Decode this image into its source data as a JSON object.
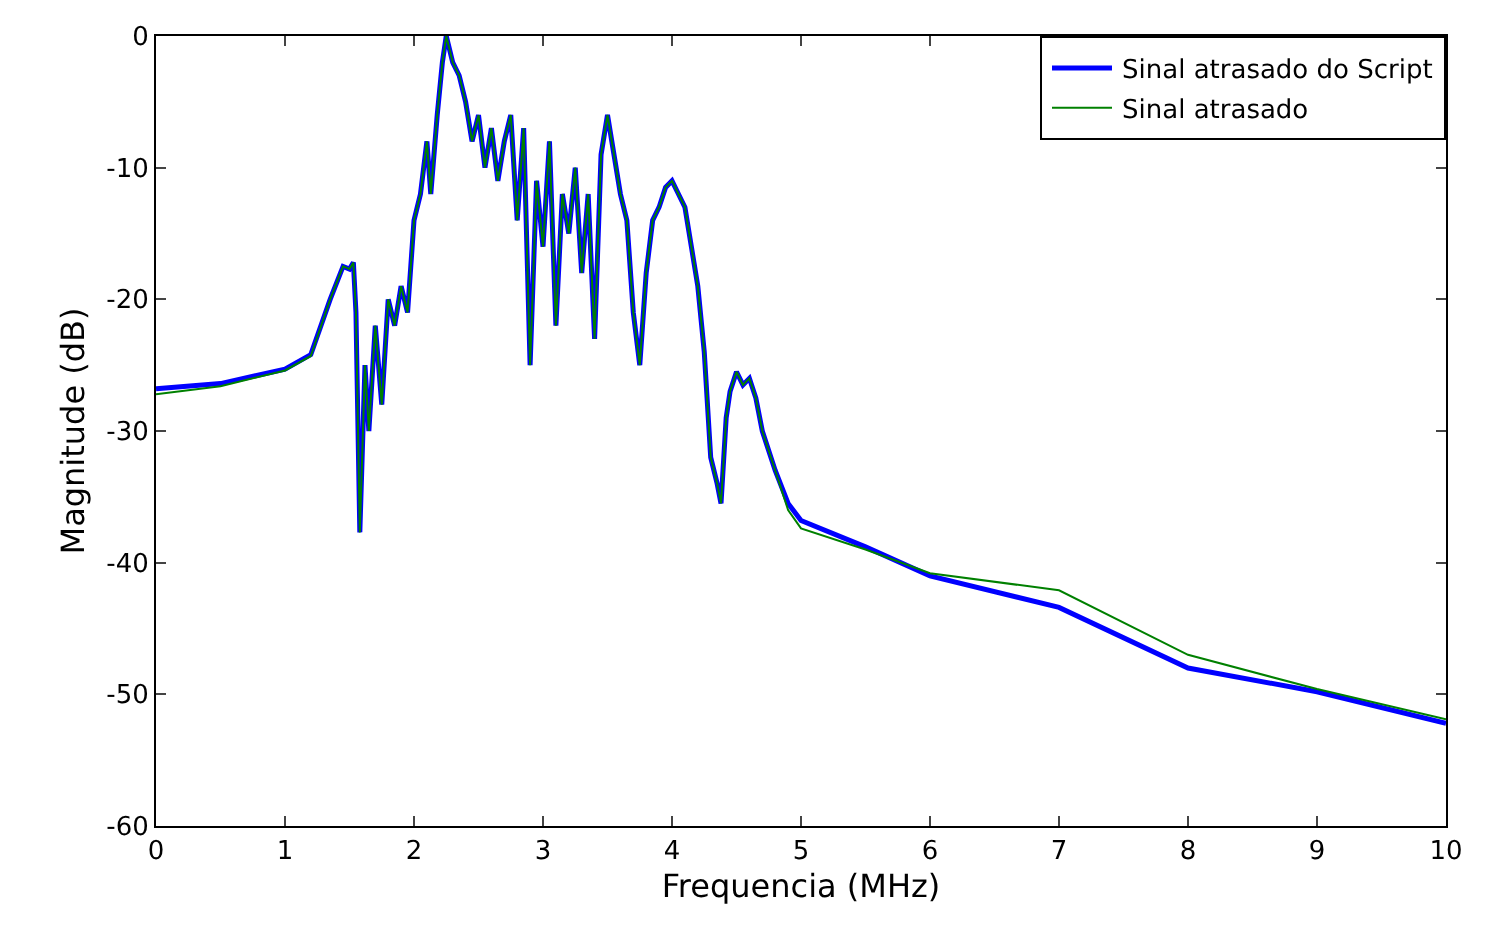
{
  "chart_data": {
    "type": "line",
    "xlabel": "Frequencia (MHz)",
    "ylabel": "Magnitude (dB)",
    "xlim": [
      0,
      10
    ],
    "xticks": [
      0,
      1,
      2,
      3,
      4,
      5,
      6,
      7,
      8,
      9,
      10
    ],
    "ylim": [
      -60,
      0
    ],
    "yticks": [
      -60,
      -50,
      -40,
      -30,
      -20,
      -10,
      0
    ],
    "grid": false,
    "legend": "top right",
    "marker": "none",
    "line_style": "solid",
    "series": [
      {
        "name": "Sinal atrasado do Script",
        "color": "#0000ff",
        "x": [
          0,
          0.5,
          1.0,
          1.2,
          1.35,
          1.45,
          1.5,
          1.53,
          1.55,
          1.58,
          1.62,
          1.65,
          1.7,
          1.75,
          1.8,
          1.85,
          1.9,
          1.95,
          2.0,
          2.05,
          2.1,
          2.13,
          2.18,
          2.22,
          2.25,
          2.3,
          2.35,
          2.4,
          2.45,
          2.5,
          2.55,
          2.6,
          2.65,
          2.7,
          2.75,
          2.8,
          2.85,
          2.9,
          2.95,
          3.0,
          3.05,
          3.1,
          3.15,
          3.2,
          3.25,
          3.3,
          3.35,
          3.4,
          3.45,
          3.5,
          3.55,
          3.6,
          3.65,
          3.7,
          3.75,
          3.8,
          3.85,
          3.9,
          3.95,
          4.0,
          4.05,
          4.1,
          4.15,
          4.2,
          4.25,
          4.3,
          4.35,
          4.38,
          4.42,
          4.45,
          4.5,
          4.55,
          4.6,
          4.65,
          4.7,
          4.8,
          4.9,
          5.0,
          5.5,
          6,
          7,
          8,
          9,
          10
        ],
        "values": [
          -26.8,
          -26.4,
          -25.3,
          -24.2,
          -20,
          -17.5,
          -17.7,
          -17.2,
          -21,
          -37.7,
          -25,
          -30,
          -22,
          -28,
          -20,
          -22,
          -19,
          -21,
          -14,
          -12,
          -8,
          -12,
          -6,
          -2,
          0,
          -2,
          -3,
          -5,
          -8,
          -6,
          -10,
          -7,
          -11,
          -8,
          -6,
          -14,
          -7,
          -25,
          -11,
          -16,
          -8,
          -22,
          -12,
          -15,
          -10,
          -18,
          -12,
          -23,
          -9,
          -6,
          -9,
          -12,
          -14,
          -21,
          -25,
          -18,
          -14,
          -13,
          -11.5,
          -11,
          -12,
          -13,
          -16,
          -19,
          -24,
          -32,
          -34,
          -35.5,
          -29,
          -27,
          -25.5,
          -26.5,
          -26,
          -27.5,
          -30,
          -33,
          -35.5,
          -36.8,
          -38.8,
          -41,
          -43.4,
          -48,
          -49.8,
          -52.2
        ]
      },
      {
        "name": "Sinal atrasado",
        "color": "#008000",
        "x": [
          0,
          0.5,
          1.0,
          1.2,
          1.35,
          1.45,
          1.5,
          1.53,
          1.55,
          1.58,
          1.62,
          1.65,
          1.7,
          1.75,
          1.8,
          1.85,
          1.9,
          1.95,
          2.0,
          2.05,
          2.1,
          2.13,
          2.18,
          2.22,
          2.25,
          2.3,
          2.35,
          2.4,
          2.45,
          2.5,
          2.55,
          2.6,
          2.65,
          2.7,
          2.75,
          2.8,
          2.85,
          2.9,
          2.95,
          3.0,
          3.05,
          3.1,
          3.15,
          3.2,
          3.25,
          3.3,
          3.35,
          3.4,
          3.45,
          3.5,
          3.55,
          3.6,
          3.65,
          3.7,
          3.75,
          3.8,
          3.85,
          3.9,
          3.95,
          4.0,
          4.05,
          4.1,
          4.15,
          4.2,
          4.25,
          4.3,
          4.35,
          4.38,
          4.42,
          4.45,
          4.5,
          4.55,
          4.6,
          4.65,
          4.7,
          4.8,
          4.9,
          5.0,
          5.5,
          6,
          7,
          8,
          9,
          10
        ],
        "values": [
          -27.2,
          -26.6,
          -25.4,
          -24.3,
          -20,
          -17.5,
          -17.7,
          -17.2,
          -21,
          -37.7,
          -25,
          -30,
          -22,
          -28,
          -20,
          -22,
          -19,
          -21,
          -14,
          -12,
          -8,
          -12,
          -6,
          -2,
          0,
          -2,
          -3,
          -5,
          -8,
          -6,
          -10,
          -7,
          -11,
          -8,
          -6,
          -14,
          -7,
          -25,
          -11,
          -16,
          -8,
          -22,
          -12,
          -15,
          -10,
          -18,
          -12,
          -23,
          -9,
          -6,
          -9,
          -12,
          -14,
          -21,
          -25,
          -18,
          -14,
          -13,
          -11.5,
          -11,
          -12,
          -13,
          -16,
          -19,
          -24,
          -32,
          -34,
          -35.5,
          -29,
          -27,
          -25.5,
          -26.5,
          -26,
          -27.5,
          -30,
          -33,
          -36,
          -37.4,
          -39,
          -40.8,
          -42.1,
          -47,
          -49.6,
          -51.9
        ]
      }
    ]
  }
}
